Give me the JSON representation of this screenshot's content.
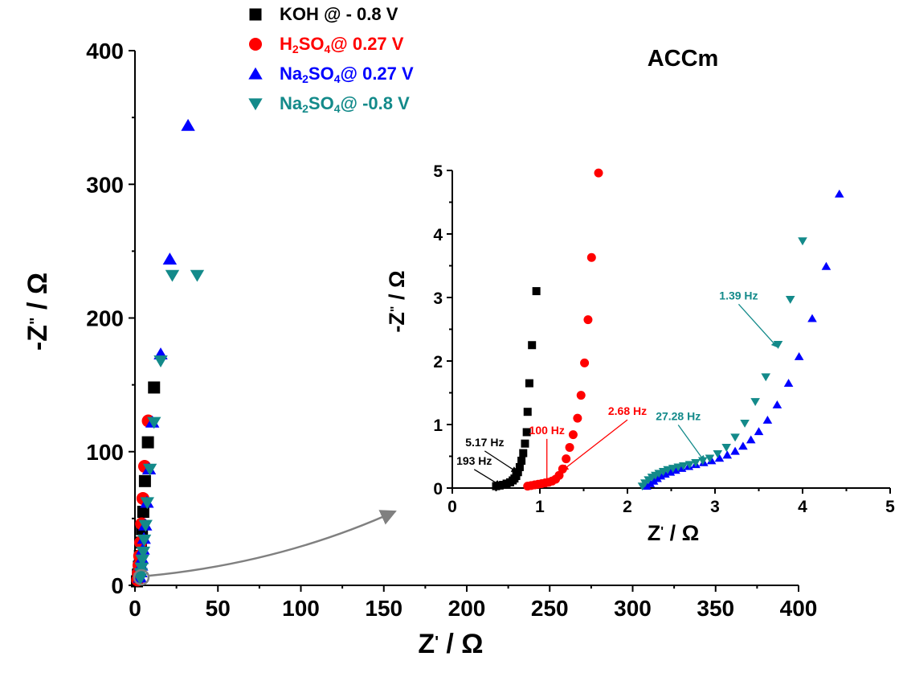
{
  "colors": {
    "koh": "#000000",
    "h2so4": "#ff0000",
    "na_pos": "#0000ff",
    "na_neg": "#138a8a",
    "zoom_arrow": "#808080"
  },
  "legend": [
    {
      "key": "koh",
      "marker": "square",
      "label_parts": [
        {
          "t": "KOH @ - 0.8 V"
        }
      ]
    },
    {
      "key": "h2so4",
      "marker": "circle",
      "label_parts": [
        {
          "t": "H"
        },
        {
          "t": "2",
          "sub": true
        },
        {
          "t": "SO"
        },
        {
          "t": "4",
          "sub": true
        },
        {
          "t": "@ 0.27 V"
        }
      ]
    },
    {
      "key": "na_pos",
      "marker": "triangle-up",
      "label_parts": [
        {
          "t": "Na"
        },
        {
          "t": "2",
          "sub": true
        },
        {
          "t": "SO"
        },
        {
          "t": "4",
          "sub": true
        },
        {
          "t": "@ 0.27 V"
        }
      ]
    },
    {
      "key": "na_neg",
      "marker": "triangle-down",
      "label_parts": [
        {
          "t": "Na"
        },
        {
          "t": "2",
          "sub": true
        },
        {
          "t": "SO"
        },
        {
          "t": "4",
          "sub": true
        },
        {
          "t": "@ -0.8 V"
        }
      ]
    }
  ],
  "chart_data": [
    {
      "type": "scatter",
      "panel": "main",
      "xlabel_parts": [
        {
          "t": "Z"
        },
        {
          "t": "'",
          "sup": true
        },
        {
          "t": " / Ω"
        }
      ],
      "ylabel_parts": [
        {
          "t": "-Z"
        },
        {
          "t": "\"",
          "sup": true
        },
        {
          "t": " / Ω"
        }
      ],
      "xlim": [
        0,
        400
      ],
      "ylim": [
        0,
        400
      ],
      "xticks": [
        0,
        50,
        100,
        150,
        200,
        250,
        300,
        350,
        400
      ],
      "yticks": [
        0,
        100,
        200,
        300,
        400
      ],
      "series": [
        {
          "key": "koh",
          "marker": "square",
          "x": [
            1.2,
            1.8,
            2.4,
            3.0,
            3.6,
            4.2,
            5.0,
            6.0,
            7.8,
            11.5
          ],
          "y": [
            3,
            8,
            14,
            22,
            32,
            42,
            55,
            78,
            107,
            148
          ]
        },
        {
          "key": "h2so4",
          "marker": "circle",
          "x": [
            1.6,
            2.0,
            2.4,
            2.8,
            3.4,
            4.0,
            4.8,
            5.8,
            8.0
          ],
          "y": [
            4,
            9,
            15,
            22,
            32,
            46,
            65,
            89,
            123
          ]
        },
        {
          "key": "na_pos",
          "marker": "triangle-up",
          "x": [
            3.0,
            3.4,
            3.8,
            4.2,
            4.8,
            5.4,
            6.2,
            7.2,
            8.5,
            10.5,
            15.5,
            21,
            32
          ],
          "y": [
            6,
            10,
            15,
            20,
            27,
            35,
            45,
            62,
            87,
            122,
            173,
            244,
            344
          ]
        },
        {
          "key": "na_neg",
          "marker": "triangle-down",
          "x": [
            3.2,
            3.6,
            4.0,
            4.4,
            5.0,
            5.6,
            6.4,
            7.4,
            9.0,
            11.5,
            15.5,
            22.5,
            37.5
          ],
          "y": [
            5,
            9,
            13,
            19,
            25,
            34,
            45,
            62,
            87,
            122,
            168,
            232,
            232
          ]
        }
      ]
    },
    {
      "type": "scatter",
      "panel": "inset",
      "title": "ACCm",
      "xlabel_parts": [
        {
          "t": "Z"
        },
        {
          "t": "'",
          "sup": true
        },
        {
          "t": " / Ω"
        }
      ],
      "ylabel_parts": [
        {
          "t": "-Z"
        },
        {
          "t": "\"",
          "sup": true
        },
        {
          "t": " / Ω"
        }
      ],
      "xlim": [
        0,
        5
      ],
      "ylim": [
        0,
        5
      ],
      "xticks": [
        0,
        1,
        2,
        3,
        4,
        5
      ],
      "yticks": [
        0,
        1,
        2,
        3,
        4,
        5
      ],
      "series": [
        {
          "key": "koh",
          "marker": "square",
          "x": [
            0.5,
            0.54,
            0.58,
            0.62,
            0.66,
            0.69,
            0.71,
            0.73,
            0.75,
            0.77,
            0.79,
            0.81,
            0.83,
            0.85,
            0.86,
            0.88,
            0.91,
            0.96
          ],
          "y": [
            0.03,
            0.04,
            0.05,
            0.07,
            0.09,
            0.12,
            0.15,
            0.19,
            0.25,
            0.33,
            0.43,
            0.55,
            0.7,
            0.88,
            1.2,
            1.65,
            2.25,
            3.1
          ]
        },
        {
          "key": "h2so4",
          "marker": "circle",
          "x": [
            0.86,
            0.9,
            0.94,
            0.98,
            1.02,
            1.06,
            1.1,
            1.14,
            1.18,
            1.22,
            1.26,
            1.3,
            1.34,
            1.38,
            1.43,
            1.47,
            1.51,
            1.55,
            1.59,
            1.67
          ],
          "y": [
            0.03,
            0.04,
            0.05,
            0.06,
            0.07,
            0.08,
            0.09,
            0.11,
            0.14,
            0.2,
            0.3,
            0.46,
            0.64,
            0.84,
            1.1,
            1.46,
            1.97,
            2.65,
            3.63,
            4.96
          ]
        },
        {
          "key": "na_pos",
          "marker": "triangle-up",
          "x": [
            2.22,
            2.26,
            2.3,
            2.34,
            2.38,
            2.43,
            2.49,
            2.55,
            2.62,
            2.7,
            2.78,
            2.87,
            2.96,
            3.05,
            3.14,
            3.23,
            3.32,
            3.41,
            3.5,
            3.6,
            3.71,
            3.84,
            3.96,
            4.11,
            4.27,
            4.42
          ],
          "y": [
            0.03,
            0.07,
            0.11,
            0.15,
            0.19,
            0.22,
            0.25,
            0.28,
            0.31,
            0.34,
            0.37,
            0.4,
            0.43,
            0.47,
            0.52,
            0.58,
            0.66,
            0.76,
            0.89,
            1.07,
            1.31,
            1.65,
            2.07,
            2.67,
            3.49,
            4.63
          ]
        },
        {
          "key": "na_neg",
          "marker": "triangle-down",
          "x": [
            2.17,
            2.2,
            2.24,
            2.28,
            2.32,
            2.36,
            2.41,
            2.46,
            2.52,
            2.58,
            2.64,
            2.71,
            2.78,
            2.86,
            2.94,
            3.03,
            3.13,
            3.23,
            3.34,
            3.46,
            3.58,
            3.72,
            3.86,
            4.0
          ],
          "y": [
            0.03,
            0.08,
            0.13,
            0.17,
            0.2,
            0.23,
            0.26,
            0.29,
            0.31,
            0.33,
            0.35,
            0.37,
            0.4,
            0.43,
            0.47,
            0.54,
            0.64,
            0.8,
            1.02,
            1.36,
            1.75,
            2.26,
            2.97,
            3.89
          ]
        }
      ],
      "annotations": [
        {
          "text": "193 Hz",
          "color": "koh",
          "at": [
            0.55,
            0.04
          ],
          "label": [
            0.25,
            0.37
          ]
        },
        {
          "text": "5.17 Hz",
          "color": "koh",
          "at": [
            0.74,
            0.25
          ],
          "label": [
            0.37,
            0.66
          ]
        },
        {
          "text": "100 Hz",
          "color": "h2so4",
          "at": [
            1.08,
            0.06
          ],
          "label": [
            1.08,
            0.85
          ]
        },
        {
          "text": "2.68 Hz",
          "color": "h2so4",
          "at": [
            1.26,
            0.28
          ],
          "label": [
            2.0,
            1.15
          ]
        },
        {
          "text": "27.28 Hz",
          "color": "na_neg",
          "at": [
            2.88,
            0.42
          ],
          "label": [
            2.58,
            1.07
          ]
        },
        {
          "text": "1.39 Hz",
          "color": "na_neg",
          "at": [
            3.71,
            2.22
          ],
          "label": [
            3.27,
            2.97
          ]
        }
      ]
    }
  ]
}
